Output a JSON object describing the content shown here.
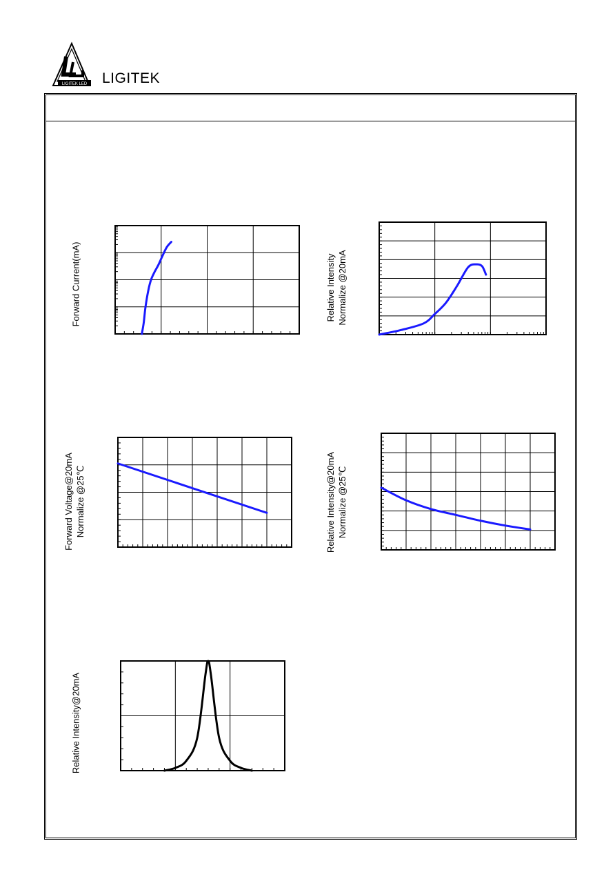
{
  "brand": {
    "name": "LIGITEK",
    "logo_text": "LIGITEK LED"
  },
  "chart_data": [
    {
      "type": "line",
      "ylabel": "Forward Current(mA)",
      "xlabel": "",
      "xlim": [
        0,
        4
      ],
      "ylim": [
        0,
        4
      ],
      "yscale": "log-decades",
      "grid": true,
      "series": [
        {
          "color": "#1a1aff",
          "x": [
            0.58,
            0.62,
            0.66,
            0.72,
            0.78,
            0.86,
            0.94,
            1.02,
            1.12,
            1.22
          ],
          "y": [
            0.0,
            0.4,
            1.0,
            1.6,
            2.0,
            2.3,
            2.55,
            2.85,
            3.2,
            3.4
          ]
        }
      ]
    },
    {
      "type": "line",
      "ylabel": "Relative Intensity\nNormalize @20mA",
      "xlabel": "",
      "xlim": [
        0,
        3
      ],
      "ylim": [
        0,
        6
      ],
      "xscale": "log-decades",
      "grid": true,
      "series": [
        {
          "color": "#1a1aff",
          "x": [
            0.0,
            0.4,
            0.8,
            1.0,
            1.2,
            1.4,
            1.6,
            1.75,
            1.85,
            1.92
          ],
          "y": [
            0.0,
            0.25,
            0.6,
            1.1,
            1.7,
            2.6,
            3.6,
            3.75,
            3.65,
            3.2
          ]
        }
      ]
    },
    {
      "type": "line",
      "ylabel": "Forward Voltage@20mA\nNormalize @25℃",
      "xlabel": "",
      "xlim": [
        0,
        7
      ],
      "ylim": [
        0,
        4
      ],
      "grid": true,
      "series": [
        {
          "color": "#1a1aff",
          "x": [
            0,
            6
          ],
          "y": [
            3.05,
            1.25
          ]
        }
      ]
    },
    {
      "type": "line",
      "ylabel": "Relative Intensity@20mA\nNormalize @25℃",
      "xlabel": "",
      "xlim": [
        0,
        7
      ],
      "ylim": [
        0,
        6
      ],
      "grid": true,
      "series": [
        {
          "color": "#1a1aff",
          "x": [
            0,
            1,
            2,
            3,
            4,
            5,
            6
          ],
          "y": [
            3.2,
            2.55,
            2.1,
            1.8,
            1.5,
            1.25,
            1.05
          ]
        }
      ]
    },
    {
      "type": "line",
      "ylabel": "Relative Intensity@20mA",
      "xlabel": "",
      "xlim": [
        0,
        3
      ],
      "ylim": [
        0,
        2
      ],
      "grid": true,
      "series": [
        {
          "color": "#000000",
          "x": [
            0.8,
            1.0,
            1.2,
            1.4,
            1.55,
            1.6,
            1.65,
            1.8,
            2.0,
            2.2,
            2.4
          ],
          "y": [
            0.0,
            0.05,
            0.18,
            0.6,
            1.75,
            2.0,
            1.75,
            0.6,
            0.18,
            0.05,
            0.0
          ]
        }
      ]
    }
  ]
}
